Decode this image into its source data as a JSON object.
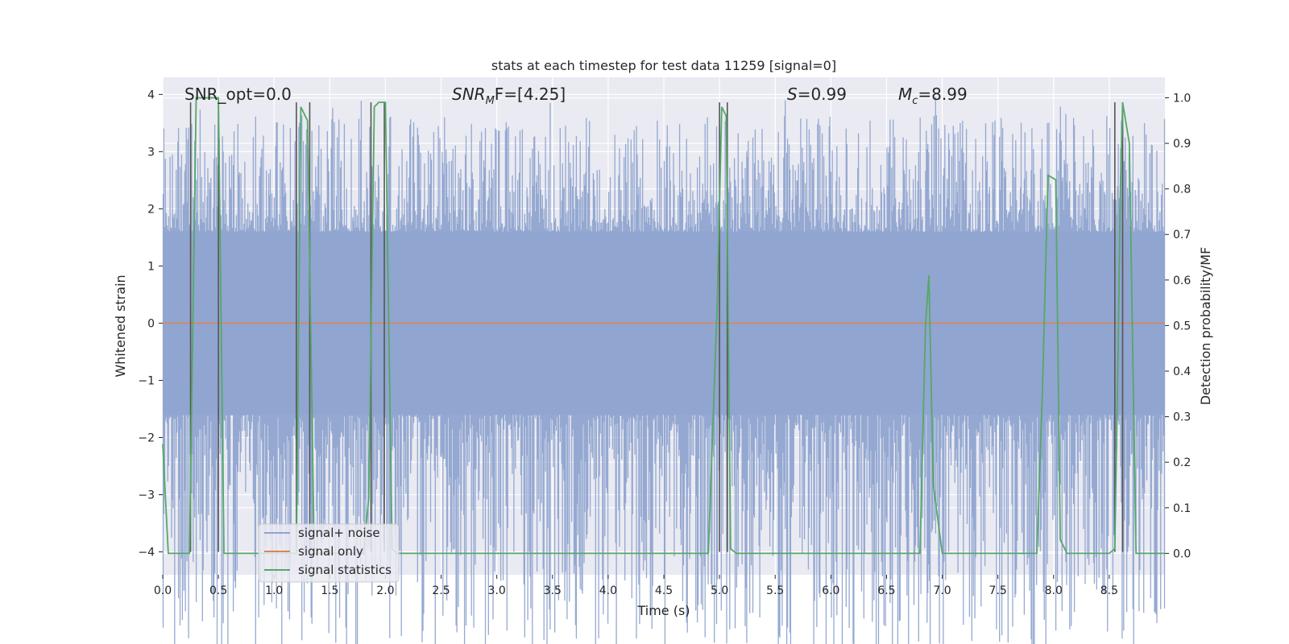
{
  "chart_data": {
    "type": "line",
    "title": "stats at each timestep for test data 11259 [signal=0]",
    "xlabel": "Time (s)",
    "ylabel_left": "Whitened strain",
    "ylabel_right": "Detection probability/MF",
    "xlim": [
      0,
      9.0
    ],
    "ylim_left": [
      -4.4,
      4.3
    ],
    "ylim_right": [
      -0.047,
      1.045
    ],
    "x_ticks": [
      0.0,
      0.5,
      1.0,
      1.5,
      2.0,
      2.5,
      3.0,
      3.5,
      4.0,
      4.5,
      5.0,
      5.5,
      6.0,
      6.5,
      7.0,
      7.5,
      8.0,
      8.5
    ],
    "x_tick_labels": [
      "0.0",
      "0.5",
      "1.0",
      "1.5",
      "2.0",
      "2.5",
      "3.0",
      "3.5",
      "4.0",
      "4.5",
      "5.0",
      "5.5",
      "6.0",
      "6.5",
      "7.0",
      "7.5",
      "8.0",
      "8.5"
    ],
    "y_ticks_left": [
      4,
      3,
      2,
      1,
      0,
      -1,
      -2,
      -3,
      -4
    ],
    "y_tick_labels_left": [
      "4",
      "3",
      "2",
      "1",
      "0",
      "−1",
      "−2",
      "−3",
      "−4"
    ],
    "y_ticks_right": [
      1.0,
      0.9,
      0.8,
      0.7,
      0.6,
      0.5,
      0.4,
      0.3,
      0.2,
      0.1,
      0.0
    ],
    "y_tick_labels_right": [
      "1.0",
      "0.9",
      "0.8",
      "0.7",
      "0.6",
      "0.5",
      "0.4",
      "0.3",
      "0.2",
      "0.1",
      "0.0"
    ],
    "annotations": {
      "snr_opt": "SNR_opt=0.0",
      "snr_mf_main": "SNR",
      "snr_mf_sub": "M",
      "snr_mf_rest": "F=[4.25]",
      "s_main": "S",
      "s_rest": "=0.99",
      "mc_main": "M",
      "mc_sub": "c",
      "mc_rest": "=8.99"
    },
    "legend": {
      "placement": "lower-left",
      "entries": [
        "signal+ noise",
        "signal only",
        "signal statistics"
      ]
    },
    "colors": {
      "noise": "#8fa4cf",
      "signal_only": "#dd8452",
      "statistics": "#55a868",
      "markers": "#555555",
      "axes_bg": "#eaeaf2",
      "grid": "#ffffff"
    },
    "series": [
      {
        "name": "signal+ noise",
        "axis": "left",
        "style": "dense noise band",
        "envelope": [
          -4.0,
          4.0
        ],
        "typical_range": [
          -1.6,
          1.6
        ],
        "duration_s": 9.0
      },
      {
        "name": "signal only",
        "axis": "left",
        "x": [
          0.0,
          9.0
        ],
        "y": [
          0.0,
          0.0
        ]
      },
      {
        "name": "signal statistics",
        "axis": "right",
        "x": [
          0.0,
          0.05,
          0.2,
          0.24,
          0.3,
          0.45,
          0.5,
          0.55,
          0.6,
          0.65,
          0.7,
          1.0,
          1.18,
          1.2,
          1.24,
          1.3,
          1.36,
          1.4,
          1.8,
          1.85,
          1.9,
          1.94,
          2.0,
          2.06,
          2.1,
          2.2,
          3.3,
          3.5,
          4.9,
          4.98,
          5.02,
          5.06,
          5.1,
          5.15,
          5.2,
          5.6,
          5.75,
          5.8,
          6.8,
          6.85,
          6.88,
          6.92,
          7.0,
          7.2,
          7.8,
          7.85,
          7.9,
          7.95,
          8.02,
          8.06,
          8.12,
          8.2,
          8.5,
          8.55,
          8.58,
          8.6,
          8.62,
          8.68,
          8.74,
          8.8,
          9.0
        ],
        "y": [
          0.24,
          0.0,
          0.0,
          0.0,
          1.0,
          1.0,
          1.0,
          0.0,
          0.0,
          0.0,
          0.0,
          0.0,
          0.0,
          0.0,
          0.98,
          0.95,
          0.0,
          0.0,
          0.0,
          0.12,
          0.98,
          0.99,
          0.99,
          0.01,
          0.0,
          0.0,
          0.0,
          0.0,
          0.0,
          0.55,
          0.98,
          0.96,
          0.01,
          0.0,
          0.0,
          0.0,
          0.0,
          0.0,
          0.0,
          0.5,
          0.61,
          0.15,
          0.0,
          0.0,
          0.0,
          0.0,
          0.36,
          0.83,
          0.82,
          0.03,
          0.0,
          0.0,
          0.0,
          0.01,
          0.45,
          0.8,
          0.99,
          0.9,
          0.0,
          0.0,
          0.0
        ]
      }
    ],
    "vertical_markers_s": [
      0.25,
      0.5,
      1.2,
      1.32,
      1.87,
      1.99,
      5.0,
      5.07,
      8.55,
      8.62
    ],
    "vertical_marker_top_right_axis": 0.99
  }
}
